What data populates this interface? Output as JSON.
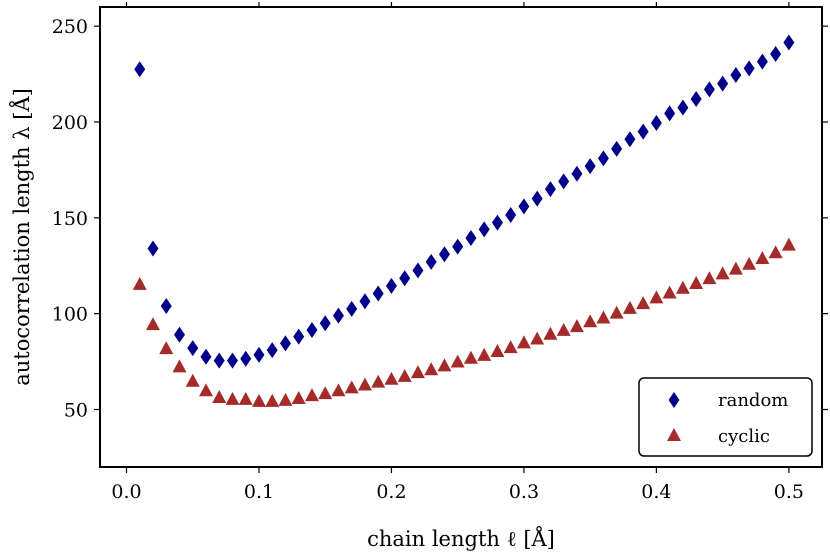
{
  "chart_data": {
    "type": "scatter",
    "title": "",
    "xlabel": "chain length ℓ [Å]",
    "ylabel": "autocorrelation length λ [Å]",
    "xlim": [
      -0.02,
      0.525
    ],
    "ylim": [
      20,
      260
    ],
    "xticks": [
      0.0,
      0.1,
      0.2,
      0.3,
      0.4,
      0.5
    ],
    "xtick_labels": [
      "0.0",
      "0.1",
      "0.2",
      "0.3",
      "0.4",
      "0.5"
    ],
    "yticks": [
      50,
      100,
      150,
      200,
      250
    ],
    "ytick_labels": [
      "50",
      "100",
      "150",
      "200",
      "250"
    ],
    "grid": false,
    "legend_position": "bottom-right",
    "x": [
      0.01,
      0.02,
      0.03,
      0.04,
      0.05,
      0.06,
      0.07,
      0.08,
      0.09,
      0.1,
      0.11,
      0.12,
      0.13,
      0.14,
      0.15,
      0.16,
      0.17,
      0.18,
      0.19,
      0.2,
      0.21,
      0.22,
      0.23,
      0.24,
      0.25,
      0.26,
      0.27,
      0.28,
      0.29,
      0.3,
      0.31,
      0.32,
      0.33,
      0.34,
      0.35,
      0.36,
      0.37,
      0.38,
      0.39,
      0.4,
      0.41,
      0.42,
      0.43,
      0.44,
      0.45,
      0.46,
      0.47,
      0.48,
      0.49,
      0.5
    ],
    "series": [
      {
        "name": "random",
        "marker": "diamond",
        "color": "#00008b",
        "values": [
          227.5,
          134,
          104,
          89,
          82,
          77.5,
          75.5,
          75.5,
          76.5,
          78.5,
          81,
          84.5,
          88,
          91.5,
          95,
          99,
          102.5,
          106.5,
          110.5,
          114.5,
          118.5,
          122.5,
          127,
          131,
          135,
          139.5,
          144,
          147.5,
          151.5,
          156,
          160,
          165,
          169,
          173,
          177,
          181,
          186,
          191,
          195,
          199.5,
          204.5,
          207.5,
          212,
          217,
          220,
          224.5,
          228,
          231.5,
          235.5,
          241.5
        ]
      },
      {
        "name": "cyclic",
        "marker": "triangle",
        "color": "#a52a2a",
        "values": [
          115.5,
          94.5,
          82,
          72.5,
          65,
          60,
          56.5,
          55.5,
          55.5,
          54.5,
          54.5,
          55,
          56,
          57.5,
          58.5,
          60,
          61.5,
          63,
          64.5,
          66,
          67.5,
          69.5,
          71,
          73,
          75,
          77,
          78.5,
          80.5,
          82.5,
          85,
          87,
          89.5,
          91.5,
          93.5,
          96,
          98,
          100.5,
          103,
          105.5,
          108.5,
          111,
          113.5,
          116,
          118.5,
          121,
          123.5,
          126,
          129,
          132,
          136
        ]
      }
    ]
  }
}
